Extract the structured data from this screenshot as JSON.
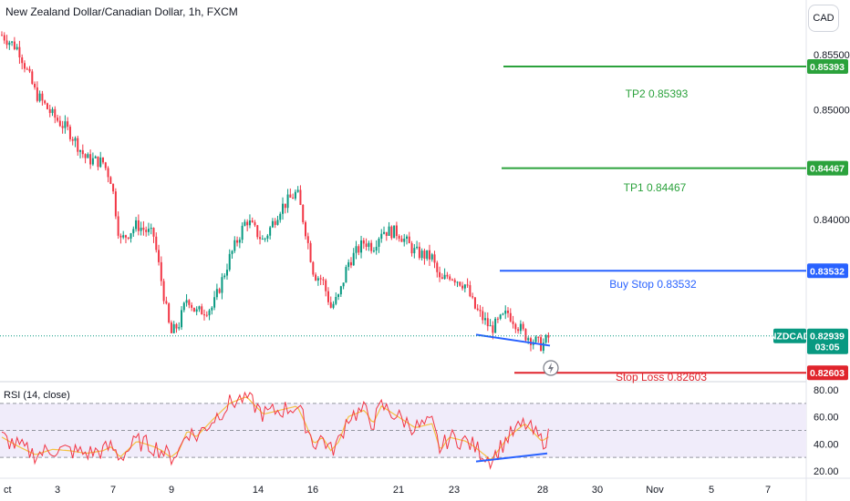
{
  "header": {
    "title": "New Zealand Dollar/Canadian Dollar, 1h, FXCM",
    "currency_button": "CAD"
  },
  "rsi_label": "RSI (14, close)",
  "price_axis_ticks": [
    "0.85500",
    "0.85000",
    "0.84000",
    "0.82939"
  ],
  "rsi_axis_ticks": [
    "80.00",
    "60.00",
    "40.00",
    "20.00"
  ],
  "time_axis_ticks": [
    "ct",
    "3",
    "7",
    "9",
    "14",
    "16",
    "21",
    "23",
    "28",
    "30",
    "Nov",
    "5",
    "7"
  ],
  "levels": [
    {
      "label": "TP2 0.85393",
      "tag": "0.85393",
      "color": "#2ba23c"
    },
    {
      "label": "TP1 0.84467",
      "tag": "0.84467",
      "color": "#2ba23c"
    },
    {
      "label": "Buy Stop 0.83532",
      "tag": "0.83532",
      "color": "#2962ff"
    },
    {
      "label": "Stop Loss 0.82603",
      "tag": "0.82603",
      "color": "#e0242c"
    }
  ],
  "current": {
    "symbol": "NZDCAD",
    "price": "0.82939",
    "countdown": "03:05",
    "color": "#089981"
  },
  "colors": {
    "up": "#089981",
    "down": "#f23645",
    "rsi_line": "#f23645",
    "rsi_ma": "#f5c242",
    "divergence": "#2962ff",
    "rsi_band": "#f0ecfa"
  },
  "chart_data": {
    "type": "candlestick",
    "price_range": [
      0.8253,
      0.8575
    ],
    "rsi_range": [
      20,
      80
    ],
    "rsi_bands": [
      30,
      50,
      70
    ],
    "price_path": [
      [
        0,
        0.8568
      ],
      [
        2,
        0.8555
      ],
      [
        4,
        0.8515
      ],
      [
        6,
        0.8495
      ],
      [
        8,
        0.848
      ],
      [
        10,
        0.8455
      ],
      [
        12,
        0.8452
      ],
      [
        13,
        0.8435
      ],
      [
        14,
        0.838
      ],
      [
        16,
        0.8395
      ],
      [
        18,
        0.8385
      ],
      [
        19,
        0.834
      ],
      [
        20,
        0.8295
      ],
      [
        21,
        0.8305
      ],
      [
        22,
        0.833
      ],
      [
        23,
        0.8315
      ],
      [
        25,
        0.832
      ],
      [
        27,
        0.8365
      ],
      [
        29,
        0.84
      ],
      [
        31,
        0.838
      ],
      [
        33,
        0.841
      ],
      [
        35,
        0.8425
      ],
      [
        36,
        0.839
      ],
      [
        37,
        0.835
      ],
      [
        38,
        0.8345
      ],
      [
        39,
        0.832
      ],
      [
        40,
        0.833
      ],
      [
        41,
        0.836
      ],
      [
        43,
        0.838
      ],
      [
        44,
        0.8375
      ],
      [
        45,
        0.839
      ],
      [
        47,
        0.8388
      ],
      [
        49,
        0.837
      ],
      [
        51,
        0.8365
      ],
      [
        52,
        0.8342
      ],
      [
        53,
        0.835
      ],
      [
        55,
        0.834
      ],
      [
        56,
        0.832
      ],
      [
        58,
        0.83
      ],
      [
        60,
        0.8315
      ],
      [
        62,
        0.8295
      ],
      [
        64,
        0.8285
      ],
      [
        65,
        0.8294
      ]
    ],
    "rsi_path": [
      [
        0,
        45
      ],
      [
        2,
        38
      ],
      [
        4,
        32
      ],
      [
        6,
        36
      ],
      [
        8,
        35
      ],
      [
        10,
        33
      ],
      [
        12,
        35
      ],
      [
        13,
        38
      ],
      [
        14,
        30
      ],
      [
        16,
        42
      ],
      [
        18,
        38
      ],
      [
        19,
        35
      ],
      [
        20,
        30
      ],
      [
        21,
        35
      ],
      [
        22,
        50
      ],
      [
        23,
        45
      ],
      [
        25,
        58
      ],
      [
        27,
        70
      ],
      [
        29,
        75
      ],
      [
        31,
        62
      ],
      [
        33,
        65
      ],
      [
        35,
        68
      ],
      [
        36,
        55
      ],
      [
        37,
        40
      ],
      [
        38,
        45
      ],
      [
        39,
        35
      ],
      [
        40,
        42
      ],
      [
        41,
        60
      ],
      [
        43,
        65
      ],
      [
        44,
        55
      ],
      [
        45,
        68
      ],
      [
        47,
        60
      ],
      [
        49,
        52
      ],
      [
        51,
        55
      ],
      [
        52,
        35
      ],
      [
        53,
        45
      ],
      [
        55,
        42
      ],
      [
        56,
        38
      ],
      [
        58,
        28
      ],
      [
        60,
        45
      ],
      [
        62,
        55
      ],
      [
        64,
        42
      ],
      [
        65,
        46
      ]
    ],
    "divergence_lines": {
      "price": [
        [
          0.8295,
          0.8285
        ]
      ],
      "rsi": [
        [
          27,
          33
        ]
      ]
    }
  }
}
